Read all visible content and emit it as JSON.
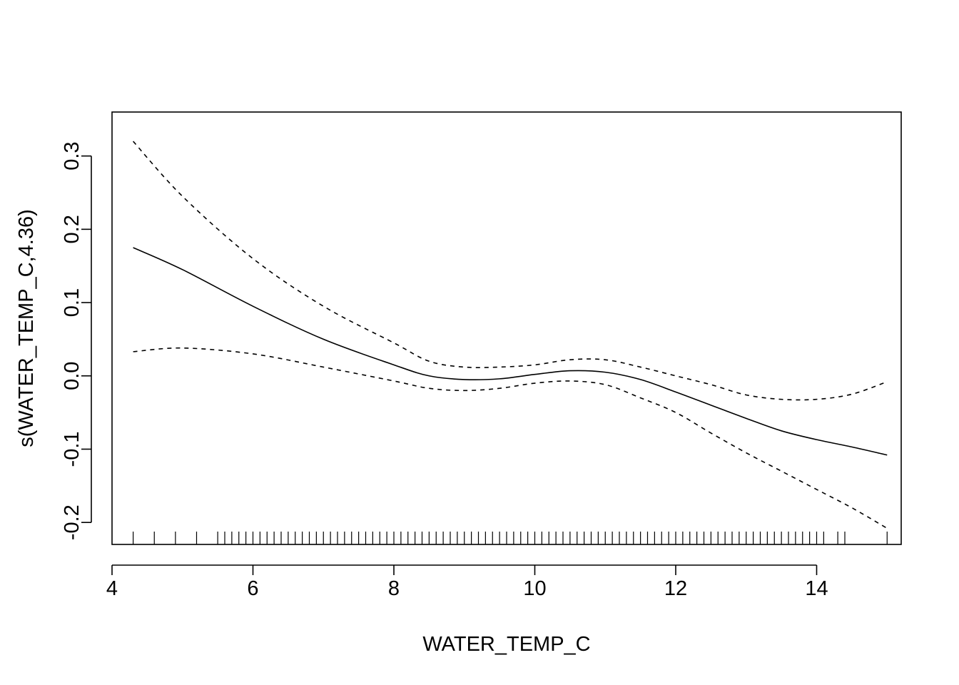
{
  "chart_data": {
    "type": "line",
    "title": "",
    "xlabel": "WATER_TEMP_C",
    "ylabel": "s(WATER_TEMP_C,4.36)",
    "xlim": [
      4.0,
      15.2
    ],
    "ylim": [
      -0.23,
      0.36
    ],
    "x_ticks": [
      4,
      6,
      8,
      10,
      12,
      14
    ],
    "x_tick_labels": [
      "4",
      "6",
      "8",
      "10",
      "12",
      "14"
    ],
    "y_ticks": [
      -0.2,
      -0.1,
      0.0,
      0.1,
      0.2,
      0.3
    ],
    "y_tick_labels": [
      "-0.2",
      "-0.1",
      "0.0",
      "0.1",
      "0.2",
      "0.3"
    ],
    "grid": false,
    "legend": "none",
    "series": [
      {
        "role": "estimate",
        "style": "solid",
        "x": [
          4.3,
          5.0,
          6.0,
          7.0,
          8.0,
          8.5,
          9.0,
          9.5,
          10.0,
          10.5,
          11.0,
          11.5,
          12.0,
          12.5,
          13.0,
          13.5,
          14.0,
          14.5,
          15.0
        ],
        "y": [
          0.175,
          0.145,
          0.095,
          0.05,
          0.015,
          0.0,
          -0.005,
          -0.004,
          0.002,
          0.007,
          0.005,
          -0.005,
          -0.022,
          -0.04,
          -0.058,
          -0.075,
          -0.087,
          -0.097,
          -0.108
        ]
      },
      {
        "role": "upper-band",
        "style": "dashed",
        "x": [
          4.3,
          5.0,
          6.0,
          7.0,
          8.0,
          8.5,
          9.0,
          9.5,
          10.0,
          10.5,
          11.0,
          11.5,
          12.0,
          12.5,
          13.0,
          13.5,
          14.0,
          14.5,
          15.0
        ],
        "y": [
          0.32,
          0.245,
          0.16,
          0.095,
          0.045,
          0.02,
          0.012,
          0.012,
          0.015,
          0.022,
          0.022,
          0.012,
          0.0,
          -0.012,
          -0.026,
          -0.032,
          -0.032,
          -0.025,
          -0.008
        ]
      },
      {
        "role": "lower-band",
        "style": "dashed",
        "x": [
          4.3,
          5.0,
          6.0,
          7.0,
          8.0,
          8.5,
          9.0,
          9.5,
          10.0,
          10.5,
          11.0,
          11.5,
          12.0,
          12.5,
          13.0,
          13.5,
          14.0,
          14.5,
          15.0
        ],
        "y": [
          0.033,
          0.038,
          0.03,
          0.012,
          -0.007,
          -0.017,
          -0.02,
          -0.017,
          -0.01,
          -0.007,
          -0.012,
          -0.03,
          -0.05,
          -0.078,
          -0.105,
          -0.13,
          -0.155,
          -0.18,
          -0.208
        ]
      }
    ],
    "rug": [
      4.3,
      4.6,
      4.9,
      5.2,
      5.5,
      5.6,
      5.7,
      5.8,
      5.9,
      6.0,
      6.1,
      6.2,
      6.3,
      6.4,
      6.5,
      6.6,
      6.7,
      6.8,
      6.9,
      7.0,
      7.1,
      7.2,
      7.3,
      7.4,
      7.5,
      7.6,
      7.7,
      7.8,
      7.9,
      8.0,
      8.1,
      8.2,
      8.3,
      8.4,
      8.5,
      8.6,
      8.7,
      8.8,
      8.9,
      9.0,
      9.1,
      9.2,
      9.3,
      9.4,
      9.5,
      9.6,
      9.7,
      9.8,
      9.9,
      10.0,
      10.1,
      10.2,
      10.3,
      10.4,
      10.5,
      10.6,
      10.7,
      10.8,
      10.9,
      11.0,
      11.1,
      11.2,
      11.3,
      11.4,
      11.5,
      11.6,
      11.7,
      11.8,
      11.9,
      12.0,
      12.1,
      12.2,
      12.3,
      12.4,
      12.5,
      12.6,
      12.7,
      12.8,
      12.9,
      13.0,
      13.1,
      13.2,
      13.3,
      13.4,
      13.5,
      13.6,
      13.7,
      13.8,
      13.9,
      14.0,
      14.1,
      14.3,
      14.4,
      15.0
    ]
  }
}
